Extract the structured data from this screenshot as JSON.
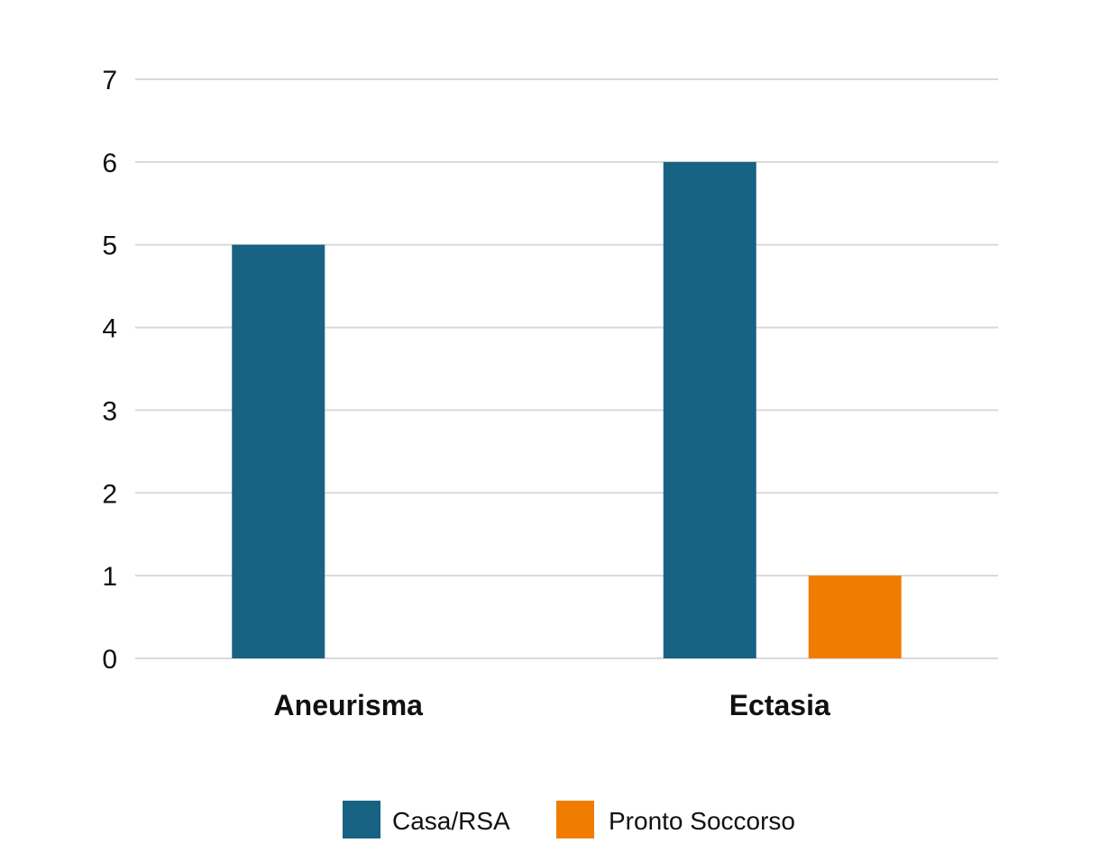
{
  "chart_data": {
    "type": "bar",
    "title": "",
    "xlabel": "",
    "ylabel": "",
    "categories": [
      "Aneurisma",
      "Ectasia"
    ],
    "series": [
      {
        "name": "Casa/RSA",
        "color": "#186283",
        "values": [
          5,
          6
        ]
      },
      {
        "name": "Pronto Soccorso",
        "color": "#F07D00",
        "values": [
          0,
          1
        ]
      }
    ],
    "ylim": [
      0,
      7
    ],
    "yticks": [
      0,
      1,
      2,
      3,
      4,
      5,
      6,
      7
    ],
    "grid": true,
    "legend_position": "bottom-center",
    "colors": {
      "grid": "#D9D9D9",
      "text": "#111111"
    }
  }
}
